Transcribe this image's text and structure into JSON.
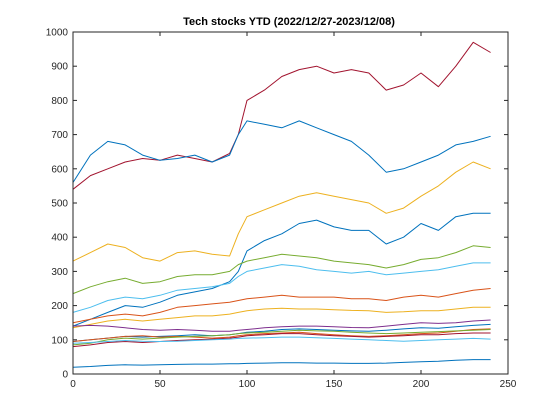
{
  "chart_data": {
    "type": "line",
    "title": "Tech stocks YTD (2022/12/27-2023/12/08)",
    "xlabel": "",
    "ylabel": "",
    "xlim": [
      0,
      250
    ],
    "ylim": [
      0,
      1000
    ],
    "xticks": [
      0,
      50,
      100,
      150,
      200,
      250
    ],
    "yticks": [
      0,
      100,
      200,
      300,
      400,
      500,
      600,
      700,
      800,
      900,
      1000
    ],
    "grid": false,
    "legend": "none",
    "x": [
      0,
      10,
      20,
      30,
      40,
      50,
      60,
      70,
      80,
      90,
      95,
      100,
      110,
      120,
      130,
      140,
      150,
      160,
      170,
      180,
      190,
      200,
      210,
      220,
      230,
      240
    ],
    "series": [
      {
        "color": "#A2142F",
        "values": [
          540,
          580,
          600,
          620,
          630,
          625,
          640,
          630,
          620,
          645,
          700,
          800,
          830,
          870,
          890,
          900,
          880,
          890,
          880,
          830,
          845,
          880,
          840,
          900,
          970,
          940
        ]
      },
      {
        "color": "#0072BD",
        "values": [
          560,
          640,
          680,
          670,
          640,
          625,
          630,
          640,
          620,
          640,
          700,
          740,
          730,
          720,
          740,
          720,
          700,
          680,
          640,
          590,
          600,
          620,
          640,
          670,
          680,
          695
        ]
      },
      {
        "color": "#EDB120",
        "values": [
          330,
          355,
          380,
          370,
          340,
          330,
          355,
          360,
          350,
          345,
          410,
          460,
          480,
          500,
          520,
          530,
          520,
          510,
          500,
          470,
          485,
          520,
          550,
          590,
          620,
          600
        ]
      },
      {
        "color": "#0072BD",
        "values": [
          140,
          160,
          180,
          200,
          195,
          210,
          230,
          240,
          250,
          270,
          300,
          360,
          390,
          410,
          440,
          450,
          430,
          420,
          420,
          380,
          400,
          440,
          420,
          460,
          470,
          470
        ]
      },
      {
        "color": "#77AC30",
        "values": [
          235,
          255,
          270,
          280,
          265,
          270,
          285,
          290,
          290,
          300,
          320,
          330,
          340,
          350,
          345,
          340,
          330,
          325,
          320,
          310,
          320,
          335,
          340,
          355,
          375,
          370
        ]
      },
      {
        "color": "#4DBEEE",
        "values": [
          180,
          195,
          215,
          225,
          220,
          230,
          245,
          250,
          255,
          265,
          285,
          300,
          310,
          320,
          315,
          305,
          300,
          295,
          300,
          290,
          295,
          300,
          305,
          315,
          325,
          325
        ]
      },
      {
        "color": "#D95319",
        "values": [
          150,
          160,
          170,
          175,
          170,
          180,
          195,
          200,
          205,
          210,
          215,
          220,
          225,
          230,
          225,
          225,
          225,
          220,
          220,
          215,
          225,
          230,
          225,
          235,
          245,
          250
        ]
      },
      {
        "color": "#EDB120",
        "values": [
          135,
          145,
          155,
          160,
          155,
          160,
          165,
          170,
          170,
          175,
          180,
          185,
          190,
          192,
          190,
          190,
          188,
          186,
          185,
          180,
          182,
          185,
          185,
          190,
          195,
          195
        ]
      },
      {
        "color": "#7E2F8E",
        "values": [
          140,
          142,
          140,
          135,
          130,
          128,
          130,
          128,
          125,
          125,
          128,
          130,
          135,
          138,
          140,
          140,
          138,
          136,
          135,
          140,
          145,
          150,
          148,
          150,
          155,
          158
        ]
      },
      {
        "color": "#0072BD",
        "values": [
          95,
          100,
          105,
          110,
          108,
          110,
          112,
          115,
          112,
          115,
          118,
          122,
          125,
          130,
          132,
          130,
          128,
          126,
          125,
          128,
          132,
          135,
          134,
          138,
          142,
          145
        ]
      },
      {
        "color": "#D95319",
        "values": [
          95,
          100,
          105,
          110,
          112,
          108,
          110,
          108,
          105,
          108,
          112,
          115,
          118,
          120,
          122,
          118,
          115,
          112,
          110,
          112,
          115,
          118,
          120,
          125,
          130,
          132
        ]
      },
      {
        "color": "#77AC30",
        "values": [
          85,
          90,
          100,
          105,
          102,
          105,
          108,
          110,
          112,
          115,
          118,
          120,
          122,
          125,
          128,
          126,
          125,
          122,
          120,
          118,
          120,
          122,
          124,
          126,
          128,
          130
        ]
      },
      {
        "color": "#A2142F",
        "values": [
          80,
          85,
          92,
          95,
          92,
          95,
          98,
          100,
          102,
          105,
          108,
          112,
          115,
          118,
          118,
          115,
          112,
          110,
          108,
          110,
          112,
          115,
          115,
          118,
          120,
          120
        ]
      },
      {
        "color": "#4DBEEE",
        "values": [
          90,
          92,
          95,
          98,
          96,
          95,
          96,
          98,
          100,
          102,
          104,
          105,
          106,
          108,
          108,
          106,
          104,
          102,
          100,
          98,
          96,
          98,
          100,
          102,
          104,
          102
        ]
      },
      {
        "color": "#0072BD",
        "values": [
          20,
          22,
          25,
          27,
          26,
          27,
          28,
          29,
          29,
          30,
          30,
          31,
          32,
          33,
          33,
          32,
          32,
          31,
          31,
          32,
          34,
          36,
          37,
          40,
          42,
          42
        ]
      }
    ]
  }
}
